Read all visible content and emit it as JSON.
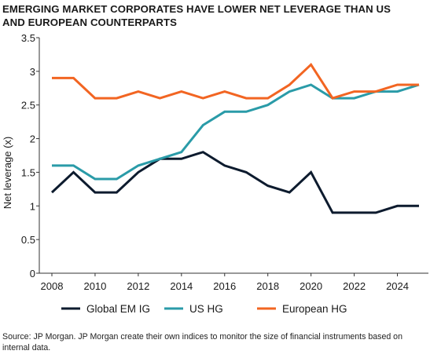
{
  "title_lines": [
    "EMERGING MARKET CORPORATES HAVE LOWER NET LEVERAGE THAN US",
    "AND EUROPEAN COUNTERPARTS"
  ],
  "source": "Source: JP Morgan. JP Morgan create their own indices to monitor the size of financial instruments based on internal data.",
  "colors": {
    "global_em_ig": "#0d1b2e",
    "us_hg": "#2a9ba8",
    "european_hg": "#f26522",
    "axis": "#333333",
    "grid": "#bfbfbf"
  },
  "chart_data": {
    "type": "line",
    "title": "EMERGING MARKET CORPORATES HAVE LOWER NET LEVERAGE THAN US AND EUROPEAN COUNTERPARTS",
    "xlabel": "",
    "ylabel": "Net leverage (x)",
    "xlim": [
      2008,
      2025
    ],
    "ylim": [
      0,
      3.5
    ],
    "x_ticks": [
      2008,
      2010,
      2012,
      2014,
      2016,
      2018,
      2020,
      2022,
      2024
    ],
    "y_ticks": [
      0,
      0.5,
      1,
      1.5,
      2,
      2.5,
      3,
      3.5
    ],
    "y_tick_labels": [
      "0",
      "0.5",
      "1",
      "1.5",
      "2",
      "2.5",
      "3",
      "3.5"
    ],
    "grid": false,
    "legend_position": "bottom",
    "x": [
      2008,
      2009,
      2010,
      2011,
      2012,
      2013,
      2014,
      2015,
      2016,
      2017,
      2018,
      2019,
      2020,
      2021,
      2022,
      2023,
      2024,
      2025
    ],
    "series": [
      {
        "name": "Global EM IG",
        "color": "#0d1b2e",
        "values": [
          1.2,
          1.5,
          1.2,
          1.2,
          1.5,
          1.7,
          1.7,
          1.8,
          1.6,
          1.5,
          1.3,
          1.2,
          1.5,
          0.9,
          0.9,
          0.9,
          1.0,
          1.0
        ]
      },
      {
        "name": "US HG",
        "color": "#2a9ba8",
        "values": [
          1.6,
          1.6,
          1.4,
          1.4,
          1.6,
          1.7,
          1.8,
          2.2,
          2.4,
          2.4,
          2.5,
          2.7,
          2.8,
          2.6,
          2.6,
          2.7,
          2.7,
          2.8
        ]
      },
      {
        "name": "European HG",
        "color": "#f26522",
        "values": [
          2.9,
          2.9,
          2.6,
          2.6,
          2.7,
          2.6,
          2.7,
          2.6,
          2.7,
          2.6,
          2.6,
          2.8,
          3.1,
          2.6,
          2.7,
          2.7,
          2.8,
          2.8
        ]
      }
    ]
  }
}
